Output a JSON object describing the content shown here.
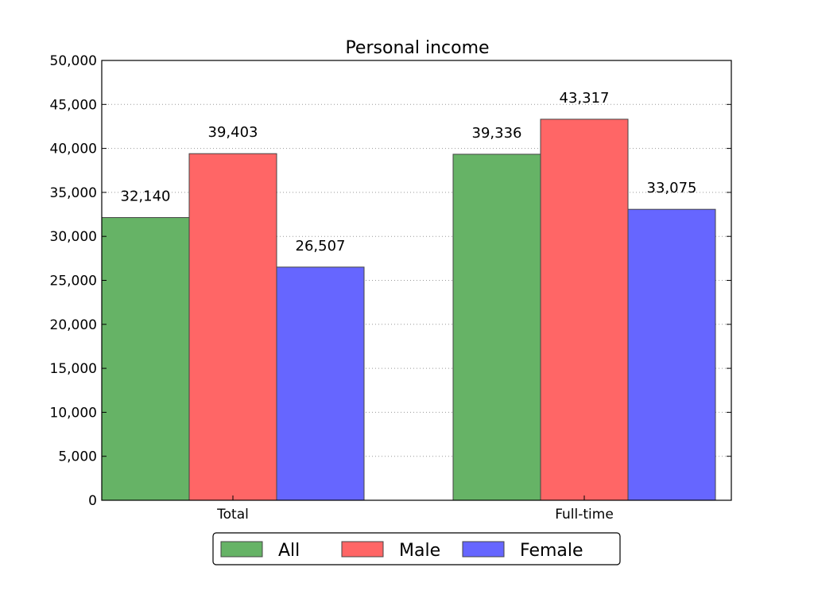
{
  "chart_data": {
    "type": "bar",
    "title": "Personal income",
    "xlabel": "",
    "ylabel": "",
    "categories": [
      "Total",
      "Full-time"
    ],
    "series": [
      {
        "name": "All",
        "values": [
          32140,
          39336
        ],
        "color": "#66b366"
      },
      {
        "name": "Male",
        "values": [
          39403,
          43317
        ],
        "color": "#ff6666"
      },
      {
        "name": "Female",
        "values": [
          26507,
          33075
        ],
        "color": "#6666ff"
      }
    ],
    "data_labels": [
      [
        "32,140",
        "39,336"
      ],
      [
        "39,403",
        "43,317"
      ],
      [
        "26,507",
        "33,075"
      ]
    ],
    "ylim": [
      0,
      50000
    ],
    "yticks": [
      0,
      5000,
      10000,
      15000,
      20000,
      25000,
      30000,
      35000,
      40000,
      45000,
      50000
    ],
    "ytick_labels": [
      "0",
      "5,000",
      "10,000",
      "15,000",
      "20,000",
      "25,000",
      "30,000",
      "35,000",
      "40,000",
      "45,000",
      "50,000"
    ],
    "grid": "horizontal-dotted",
    "legend_placement": "bottom-center"
  }
}
